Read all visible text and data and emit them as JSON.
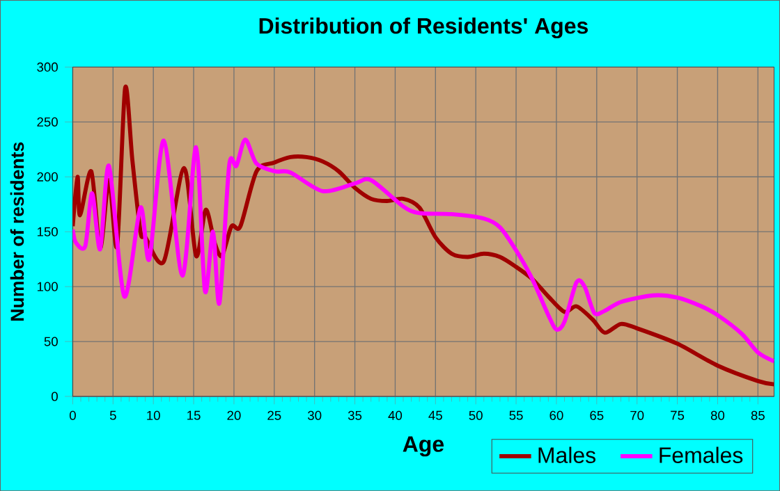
{
  "chart_data": {
    "type": "line",
    "title": "Distribution of Residents' Ages",
    "xlabel": "Age",
    "ylabel": "Number of residents",
    "xlim": [
      0,
      87
    ],
    "ylim": [
      0,
      300
    ],
    "xticks": [
      0,
      5,
      10,
      15,
      20,
      25,
      30,
      35,
      40,
      45,
      50,
      55,
      60,
      65,
      70,
      75,
      80,
      85
    ],
    "yticks": [
      0,
      50,
      100,
      150,
      200,
      250,
      300
    ],
    "grid": true,
    "legend": "bottom right",
    "marker": "none",
    "line_style": "solid",
    "series": [
      {
        "name": "Males",
        "color": "#a00000",
        "x": [
          0,
          0.6,
          0.9,
          2.3,
          3.4,
          4.5,
          5.5,
          6.5,
          7.4,
          8.4,
          9,
          11.3,
          13.8,
          15.3,
          16.5,
          17.6,
          18.5,
          19.7,
          20.8,
          22.8,
          25,
          27,
          29,
          31,
          33,
          35,
          37,
          39,
          41,
          43,
          45,
          47,
          49,
          51,
          53,
          55,
          57,
          59,
          61,
          62.5,
          64.5,
          66,
          68,
          70,
          75,
          80,
          85,
          87
        ],
        "values": [
          155,
          200,
          165,
          205,
          135,
          197,
          137,
          281,
          215,
          150,
          145,
          123,
          208,
          128,
          170,
          140,
          128,
          155,
          155,
          205,
          213,
          218,
          218,
          214,
          205,
          190,
          180,
          178,
          180,
          172,
          145,
          130,
          127,
          130,
          127,
          118,
          107,
          91,
          77,
          82,
          70,
          58,
          66,
          62,
          48,
          28,
          14,
          11
        ]
      },
      {
        "name": "Females",
        "color": "#ff00ff",
        "x": [
          0,
          0.4,
          1.55,
          2.4,
          3.4,
          4.5,
          6.4,
          8.4,
          9.5,
          11.3,
          13.6,
          15.3,
          16.4,
          17.4,
          18.2,
          19.4,
          20.3,
          21.4,
          22.8,
          25.1,
          27,
          31,
          35,
          37,
          41,
          43,
          47,
          51,
          53,
          55,
          57,
          59,
          60,
          61,
          62.5,
          63.5,
          64.7,
          66,
          68,
          72,
          75,
          78,
          80,
          83,
          85,
          87
        ],
        "values": [
          152,
          140,
          137,
          185,
          134,
          210,
          91,
          172,
          125,
          233,
          110,
          227,
          96,
          150,
          85,
          210,
          210,
          234,
          212,
          205,
          204,
          187,
          194,
          197,
          173,
          167,
          166,
          162,
          154,
          133,
          107,
          74,
          61,
          68,
          104,
          100,
          76,
          78,
          86,
          92,
          90,
          82,
          74,
          57,
          40,
          32
        ]
      }
    ]
  }
}
